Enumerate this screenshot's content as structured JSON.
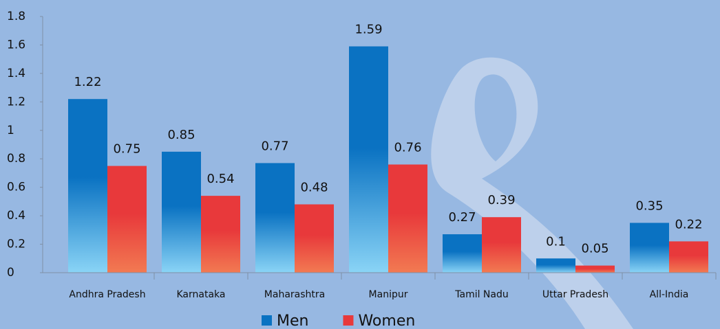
{
  "chart_data": {
    "type": "bar",
    "categories": [
      "Andhra Pradesh",
      "Karnataka",
      "Maharashtra",
      "Manipur",
      "Tamil Nadu",
      "Uttar Pradesh",
      "All-India"
    ],
    "series": [
      {
        "name": "Men",
        "color": "#0a72c2",
        "values": [
          1.22,
          0.85,
          0.77,
          1.59,
          0.27,
          0.1,
          0.35
        ]
      },
      {
        "name": "Women",
        "color": "#e8393b",
        "values": [
          0.75,
          0.54,
          0.48,
          0.76,
          0.39,
          0.05,
          0.22
        ]
      }
    ],
    "ylim": [
      0,
      1.8
    ],
    "yticks": [
      0,
      0.2,
      0.4,
      0.6,
      0.8,
      1,
      1.2,
      1.4,
      1.6,
      1.8
    ],
    "grid": false
  }
}
